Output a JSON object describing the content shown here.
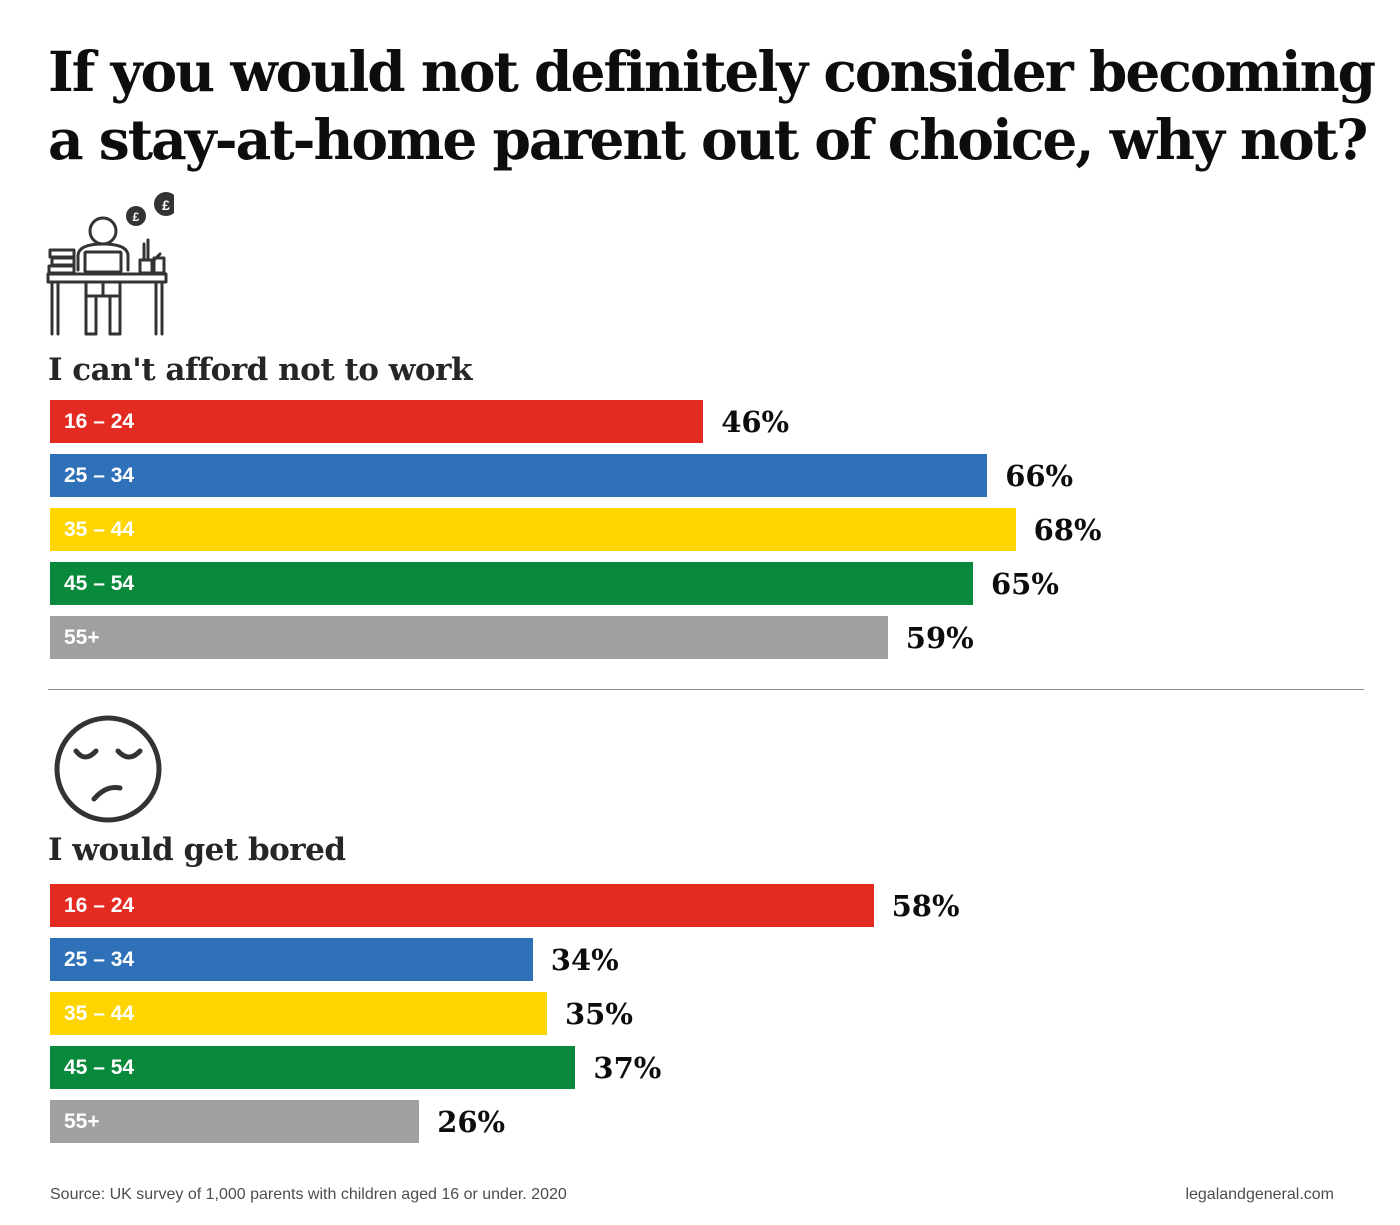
{
  "title": "If you would not definitely consider becoming a stay-at-home parent out of choice, why not?",
  "icons": {
    "section_1": "person-working-at-desk-with-pound-coins-icon",
    "section_2": "sad-face-icon"
  },
  "colors": {
    "16_24": "#e32b22",
    "25_34": "#2e71b8",
    "35_44": "#fed500",
    "45_54": "#08893b",
    "55_plus": "#a0a0a0"
  },
  "chart_data": [
    {
      "type": "bar",
      "orientation": "horizontal",
      "title": "I can't afford not to work",
      "categories": [
        "16 – 24",
        "25 – 34",
        "35 – 44",
        "45 – 54",
        "55+"
      ],
      "values": [
        46,
        66,
        68,
        65,
        59
      ],
      "value_labels": [
        "46%",
        "66%",
        "68%",
        "65%",
        "59%"
      ],
      "unit": "%",
      "xlim": [
        0,
        100
      ]
    },
    {
      "type": "bar",
      "orientation": "horizontal",
      "title": "I would get bored",
      "categories": [
        "16 – 24",
        "25 – 34",
        "35 – 44",
        "45 – 54",
        "55+"
      ],
      "values": [
        58,
        34,
        35,
        37,
        26
      ],
      "value_labels": [
        "58%",
        "34%",
        "35%",
        "37%",
        "26%"
      ],
      "unit": "%",
      "xlim": [
        0,
        100
      ]
    }
  ],
  "footer": {
    "source": "Source: UK survey of 1,000 parents with children aged 16 or under. 2020",
    "website": "legalandgeneral.com"
  }
}
